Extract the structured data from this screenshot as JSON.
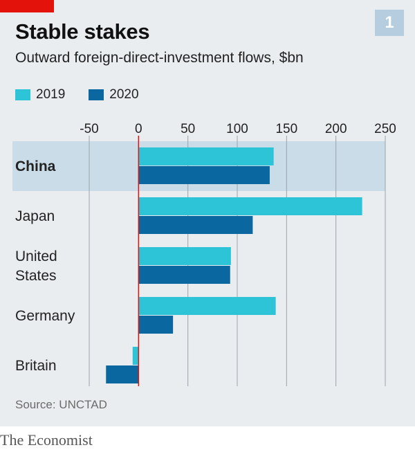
{
  "chart_number": "1",
  "title": "Stable stakes",
  "subtitle": "Outward foreign-direct-investment flows, $bn",
  "source": "Source: UNCTAD",
  "brand": "The Economist",
  "colors": {
    "series_2019": "#2ec4d8",
    "series_2020": "#0a67a0",
    "zero_line": "#e3120b",
    "highlight_band": "#c9dce8"
  },
  "chart_data": {
    "type": "bar",
    "orientation": "horizontal",
    "xlim": [
      -50,
      250
    ],
    "xticks": [
      "-50",
      "0",
      "50",
      "100",
      "150",
      "200",
      "250"
    ],
    "xtick_values": [
      -50,
      0,
      50,
      100,
      150,
      200,
      250
    ],
    "grid": true,
    "legend_position": "top-left",
    "highlighted_category": "China",
    "categories": [
      {
        "lines": [
          "China"
        ]
      },
      {
        "lines": [
          "Japan"
        ]
      },
      {
        "lines": [
          "United",
          "States"
        ]
      },
      {
        "lines": [
          "Germany"
        ]
      },
      {
        "lines": [
          "Britain"
        ]
      }
    ],
    "series": [
      {
        "name": "2019",
        "values": [
          136.9,
          226.6,
          93.6,
          139.0,
          -6.0
        ]
      },
      {
        "name": "2020",
        "values": [
          132.9,
          115.7,
          92.8,
          34.9,
          -33.0
        ]
      }
    ]
  }
}
